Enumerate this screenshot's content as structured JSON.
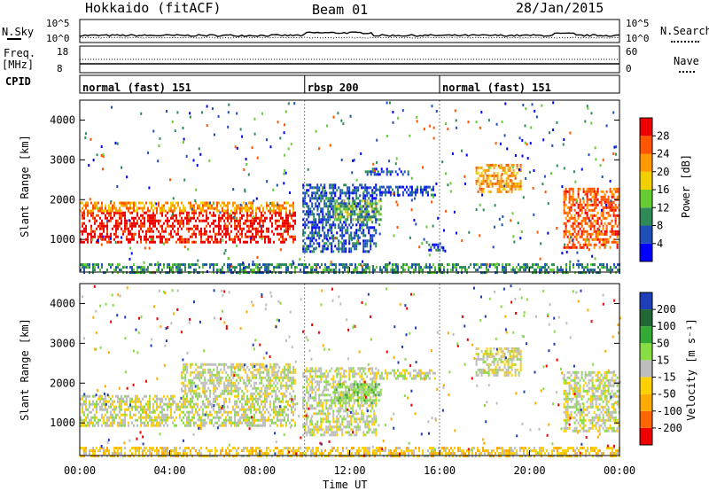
{
  "header": {
    "site": "Hokkaido (fitACF)",
    "beam": "Beam 01",
    "date": "28/Jan/2015"
  },
  "noise_panel": {
    "left_label": "N.Sky",
    "right_label": "N.Search",
    "left_ticks": [
      "10^5",
      "10^0"
    ],
    "right_ticks": [
      "10^5",
      "10^0"
    ]
  },
  "freq_panel": {
    "left_label_1": "Freq.",
    "left_label_2": "[MHz]",
    "left_ticks": [
      "18",
      "8"
    ],
    "right_label": "Nave",
    "right_ticks": [
      "60",
      "0"
    ]
  },
  "cpid_panel": {
    "label": "CPID",
    "segments": [
      {
        "name": "normal (fast) 151",
        "start_hr": 0,
        "end_hr": 10
      },
      {
        "name": "rbsp 200",
        "start_hr": 10,
        "end_hr": 16
      },
      {
        "name": "normal (fast) 151",
        "start_hr": 16,
        "end_hr": 24
      }
    ]
  },
  "time_axis": {
    "label": "Time UT",
    "ticks": [
      "00:00",
      "04:00",
      "08:00",
      "12:00",
      "16:00",
      "20:00",
      "00:00"
    ],
    "tick_hours": [
      0,
      4,
      8,
      12,
      16,
      20,
      24
    ],
    "range_hr": [
      0,
      24
    ]
  },
  "chart_data": [
    {
      "type": "heatmap",
      "name": "power",
      "ylabel": "Slant Range [km]",
      "yticks": [
        1000,
        2000,
        3000,
        4000
      ],
      "ylim": [
        180,
        4500
      ],
      "xlim": [
        0,
        24
      ],
      "colorbar_label": "Power [dB]",
      "colorbar_ticks": [
        "28",
        "24",
        "20",
        "16",
        "12",
        "8",
        "4"
      ],
      "colorbar_colors": [
        "#0000ff",
        "#1f4fb8",
        "#2e8b57",
        "#66cc33",
        "#f2d000",
        "#ff9900",
        "#ff5500",
        "#ee0000"
      ],
      "regions": [
        {
          "t0": 0.0,
          "t1": 9.6,
          "r0": 900,
          "r1": 1700,
          "level": 7
        },
        {
          "t0": 0.0,
          "t1": 9.6,
          "r0": 1700,
          "r1": 1950,
          "level": 5
        },
        {
          "t0": 9.9,
          "t1": 13.2,
          "r0": 700,
          "r1": 2400,
          "level": 1
        },
        {
          "t0": 11.3,
          "t1": 13.4,
          "r0": 1500,
          "r1": 2000,
          "level": 3
        },
        {
          "t0": 13.0,
          "t1": 15.8,
          "r0": 2100,
          "r1": 2350,
          "level": 1
        },
        {
          "t0": 12.6,
          "t1": 14.6,
          "r0": 2600,
          "r1": 2800,
          "level": 1
        },
        {
          "t0": 17.6,
          "t1": 19.6,
          "r0": 2200,
          "r1": 2900,
          "level": 5
        },
        {
          "t0": 21.5,
          "t1": 24.0,
          "r0": 800,
          "r1": 2300,
          "level": 6
        },
        {
          "t0": 15.5,
          "t1": 16.2,
          "r0": 700,
          "r1": 900,
          "level": 1
        },
        {
          "t0": 0.0,
          "t1": 24.0,
          "r0": 180,
          "r1": 400,
          "level": 2
        }
      ]
    },
    {
      "type": "heatmap",
      "name": "velocity",
      "ylabel": "Slant Range [km]",
      "yticks": [
        1000,
        2000,
        3000,
        4000
      ],
      "ylim": [
        180,
        4500
      ],
      "xlim": [
        0,
        24
      ],
      "colorbar_label": "Velocity [m s⁻¹]",
      "colorbar_ticks": [
        "200",
        "100",
        "50",
        "15",
        "-15",
        "-50",
        "-100",
        "-200"
      ],
      "colorbar_colors": [
        "#ee0000",
        "#ff6600",
        "#ffaa00",
        "#ffd000",
        "#bdbdbd",
        "#88dd44",
        "#33aa33",
        "#226633",
        "#1f3fb8"
      ],
      "regions": [
        {
          "t0": 0.0,
          "t1": 9.6,
          "r0": 900,
          "r1": 1700,
          "level": 4
        },
        {
          "t0": 4.5,
          "t1": 9.6,
          "r0": 1700,
          "r1": 2500,
          "level": 4
        },
        {
          "t0": 9.9,
          "t1": 13.2,
          "r0": 700,
          "r1": 2400,
          "level": 4
        },
        {
          "t0": 11.3,
          "t1": 13.4,
          "r0": 1500,
          "r1": 2000,
          "level": 5
        },
        {
          "t0": 13.0,
          "t1": 15.8,
          "r0": 2100,
          "r1": 2350,
          "level": 4
        },
        {
          "t0": 17.6,
          "t1": 19.6,
          "r0": 2200,
          "r1": 2900,
          "level": 4
        },
        {
          "t0": 21.5,
          "t1": 24.0,
          "r0": 800,
          "r1": 2300,
          "level": 4
        },
        {
          "t0": 0.0,
          "t1": 24.0,
          "r0": 180,
          "r1": 400,
          "level": 3
        }
      ]
    }
  ]
}
